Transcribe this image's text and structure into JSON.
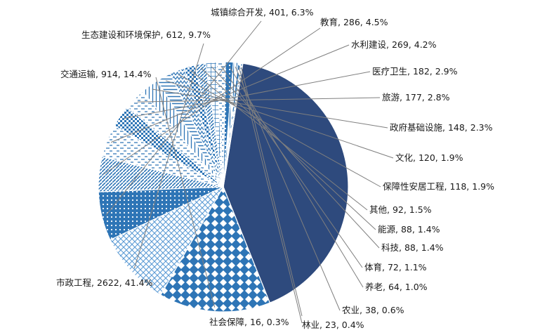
{
  "chart_data": {
    "type": "pie",
    "title": "",
    "unit": "",
    "start_angle_deg": 9,
    "direction": "clockwise",
    "slices": [
      {
        "label": "市政工程",
        "value": 2622,
        "percent": "41.4%",
        "color": "#2e4a7d",
        "pattern": "solid"
      },
      {
        "label": "交通运输",
        "value": 914,
        "percent": "14.4%",
        "color": "#2e75b6",
        "pattern": "diamond"
      },
      {
        "label": "生态建设和环境保护",
        "value": 612,
        "percent": "9.7%",
        "color": "#5b9bd5",
        "pattern": "crosshatch"
      },
      {
        "label": "城镇综合开发",
        "value": 401,
        "percent": "6.3%",
        "color": "#2e75b6",
        "pattern": "dots"
      },
      {
        "label": "教育",
        "value": 286,
        "percent": "4.5%",
        "color": "#2e75b6",
        "pattern": "diagonal"
      },
      {
        "label": "水利建设",
        "value": 269,
        "percent": "4.2%",
        "color": "#5b9bd5",
        "pattern": "dashes"
      },
      {
        "label": "医疗卫生",
        "value": 182,
        "percent": "2.9%",
        "color": "#2e75b6",
        "pattern": "checker"
      },
      {
        "label": "旅游",
        "value": 177,
        "percent": "2.8%",
        "color": "#5b9bd5",
        "pattern": "dashes"
      },
      {
        "label": "政府基础设施",
        "value": 148,
        "percent": "2.3%",
        "color": "#2e75b6",
        "pattern": "vertical"
      },
      {
        "label": "文化",
        "value": 120,
        "percent": "1.9%",
        "color": "#2e75b6",
        "pattern": "horizontal"
      },
      {
        "label": "保障性安居工程",
        "value": 118,
        "percent": "1.9%",
        "color": "#2e75b6",
        "pattern": "zigzag"
      },
      {
        "label": "其他",
        "value": 92,
        "percent": "1.5%",
        "color": "#2e75b6",
        "pattern": "checker"
      },
      {
        "label": "能源",
        "value": 88,
        "percent": "1.4%",
        "color": "#2e75b6",
        "pattern": "diagonal"
      },
      {
        "label": "科技",
        "value": 88,
        "percent": "1.4%",
        "color": "#2e75b6",
        "pattern": "grid"
      },
      {
        "label": "体育",
        "value": 72,
        "percent": "1.1%",
        "color": "#2e75b6",
        "pattern": "dashes"
      },
      {
        "label": "养老",
        "value": 64,
        "percent": "1.0%",
        "color": "#2e75b6",
        "pattern": "dots"
      },
      {
        "label": "农业",
        "value": 38,
        "percent": "0.6%",
        "color": "#2e75b6",
        "pattern": "vertical"
      },
      {
        "label": "林业",
        "value": 23,
        "percent": "0.4%",
        "color": "#2e75b6",
        "pattern": "diamond"
      },
      {
        "label": "社会保障",
        "value": 16,
        "percent": "0.3%",
        "color": "#2e75b6",
        "pattern": "horizontal"
      }
    ]
  }
}
